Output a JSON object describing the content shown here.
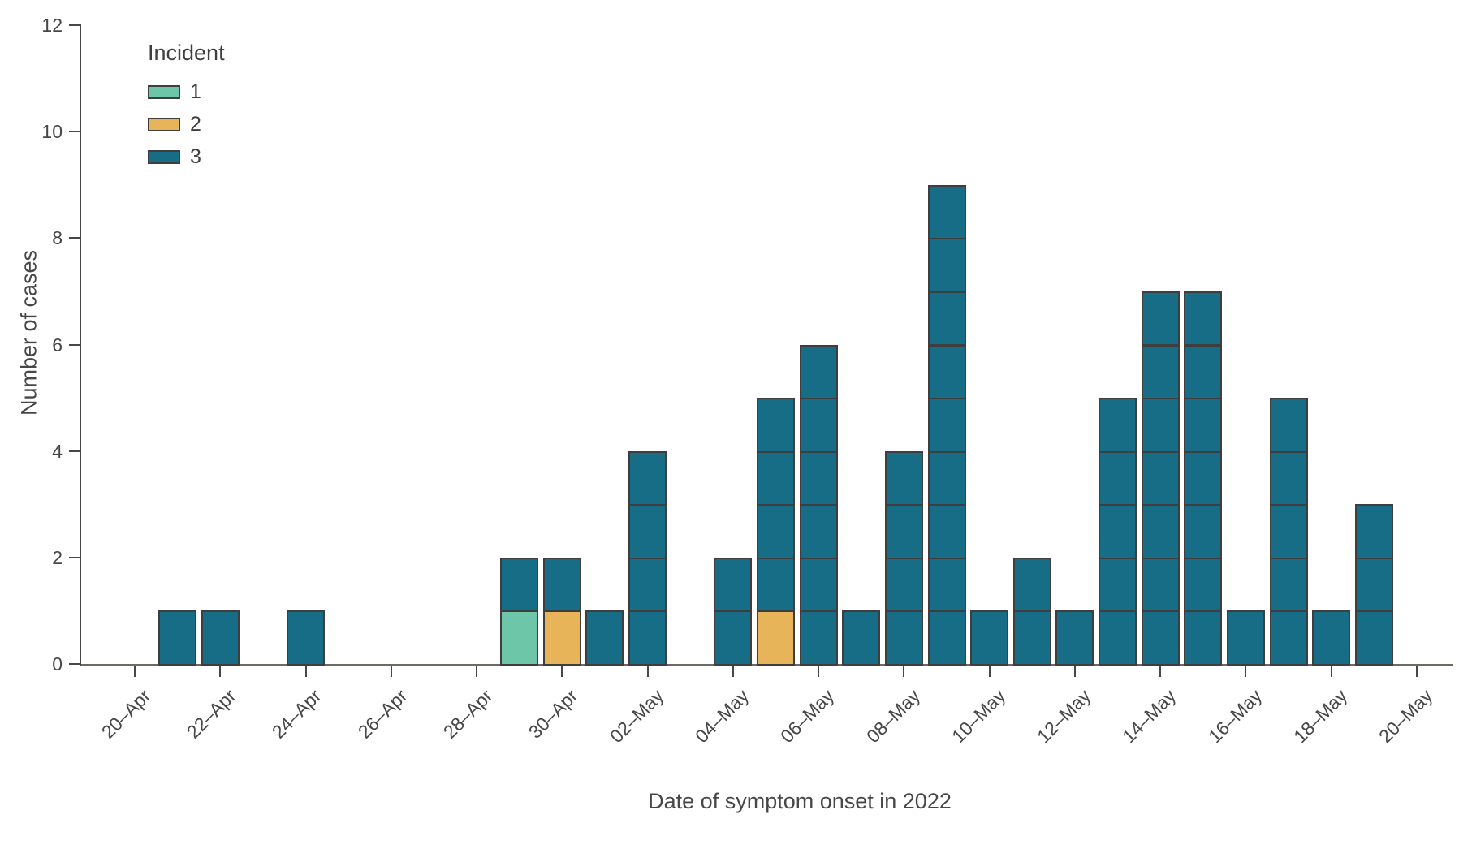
{
  "chart_data": {
    "type": "bar",
    "stacked": true,
    "title": "",
    "xlabel": "Date of symptom onset in 2022",
    "ylabel": "Number of cases",
    "ylim": [
      0,
      12
    ],
    "y_ticks": [
      0,
      2,
      4,
      6,
      8,
      10,
      12
    ],
    "grid": false,
    "x_tick_every": 2,
    "x": [
      "20–Apr",
      "21–Apr",
      "22–Apr",
      "23–Apr",
      "24–Apr",
      "25–Apr",
      "26–Apr",
      "27–Apr",
      "28–Apr",
      "29–Apr",
      "30–Apr",
      "01–May",
      "02–May",
      "03–May",
      "04–May",
      "05–May",
      "06–May",
      "07–May",
      "08–May",
      "09–May",
      "10–May",
      "11–May",
      "12–May",
      "13–May",
      "14–May",
      "15–May",
      "16–May",
      "17–May",
      "18–May",
      "19–May",
      "20–May"
    ],
    "series": [
      {
        "name": "1",
        "color": "#6ec6a8",
        "values": [
          0,
          0,
          0,
          0,
          0,
          0,
          0,
          0,
          0,
          1,
          0,
          0,
          0,
          0,
          0,
          0,
          0,
          0,
          0,
          0,
          0,
          0,
          0,
          0,
          0,
          0,
          0,
          0,
          0,
          0,
          0
        ]
      },
      {
        "name": "2",
        "color": "#e8b45a",
        "values": [
          0,
          0,
          0,
          0,
          0,
          0,
          0,
          0,
          0,
          0,
          1,
          0,
          0,
          0,
          0,
          1,
          0,
          0,
          0,
          0,
          0,
          0,
          0,
          0,
          0,
          0,
          0,
          0,
          0,
          0,
          0
        ]
      },
      {
        "name": "3",
        "color": "#176d86",
        "values": [
          0,
          1,
          1,
          0,
          1,
          0,
          0,
          0,
          0,
          1,
          1,
          1,
          4,
          0,
          2,
          4,
          6,
          1,
          4,
          9,
          1,
          2,
          1,
          5,
          7,
          7,
          1,
          5,
          1,
          3,
          0
        ]
      }
    ],
    "legend": {
      "title": "Incident",
      "position": "top-left",
      "entries": [
        "1",
        "2",
        "3"
      ]
    },
    "bar_outline_color": "#3e3e3e",
    "axis_color": "#474747",
    "text_color": "#474747"
  }
}
